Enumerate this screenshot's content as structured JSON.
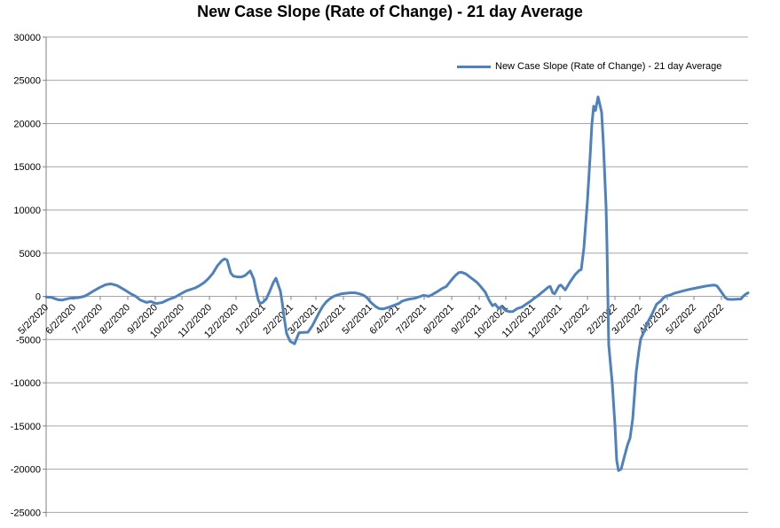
{
  "chart_data": {
    "type": "line",
    "title": "New Case Slope (Rate of Change) - 21 day Average",
    "background": "#FFFFFF",
    "line_color": "#4F81BD",
    "grid_color": "#A6A6A6",
    "axis_color": "#808080",
    "label_color": "#000000",
    "grid": true,
    "legend_position": "top-right-inside",
    "y_axis": {
      "min": -25000,
      "max": 30000,
      "step": 5000,
      "tick_labels": [
        "30000",
        "25000",
        "20000",
        "15000",
        "10000",
        "5000",
        "0",
        "-5000",
        "-10000",
        "-15000",
        "-20000",
        "-25000"
      ]
    },
    "x_axis": {
      "start_date": "5/2/2020",
      "range_days": 791,
      "tick_labels": [
        "5/2/2020",
        "6/2/2020",
        "7/2/2020",
        "8/2/2020",
        "9/2/2020",
        "10/2/2020",
        "11/2/2020",
        "12/2/2020",
        "1/2/2021",
        "2/2/2021",
        "3/2/2021",
        "4/2/2021",
        "5/2/2021",
        "6/2/2021",
        "7/2/2021",
        "8/2/2021",
        "9/2/2021",
        "10/2/2021",
        "11/2/2021",
        "12/2/2021",
        "1/2/2022",
        "2/2/2022",
        "3/2/2022",
        "4/2/2022",
        "5/2/2022",
        "6/2/2022"
      ]
    },
    "series": [
      {
        "name": "New Case Slope (Rate of Change) - 21 day Average",
        "points": [
          [
            0,
            -80
          ],
          [
            6,
            -120
          ],
          [
            13,
            -380
          ],
          [
            18,
            -430
          ],
          [
            26,
            -230
          ],
          [
            36,
            -150
          ],
          [
            43,
            0
          ],
          [
            48,
            280
          ],
          [
            53,
            600
          ],
          [
            60,
            1010
          ],
          [
            67,
            1350
          ],
          [
            73,
            1450
          ],
          [
            80,
            1250
          ],
          [
            88,
            780
          ],
          [
            96,
            260
          ],
          [
            101,
            0
          ],
          [
            106,
            -420
          ],
          [
            113,
            -700
          ],
          [
            118,
            -600
          ],
          [
            124,
            -840
          ],
          [
            131,
            -700
          ],
          [
            138,
            -350
          ],
          [
            145,
            -100
          ],
          [
            151,
            250
          ],
          [
            158,
            640
          ],
          [
            163,
            800
          ],
          [
            168,
            980
          ],
          [
            173,
            1250
          ],
          [
            178,
            1590
          ],
          [
            183,
            2070
          ],
          [
            188,
            2690
          ],
          [
            193,
            3540
          ],
          [
            198,
            4120
          ],
          [
            201,
            4330
          ],
          [
            204,
            4200
          ],
          [
            208,
            2700
          ],
          [
            211,
            2340
          ],
          [
            216,
            2250
          ],
          [
            220,
            2250
          ],
          [
            224,
            2400
          ],
          [
            230,
            2950
          ],
          [
            234,
            2000
          ],
          [
            236,
            980
          ],
          [
            239,
            -400
          ],
          [
            241,
            -840
          ],
          [
            244,
            -700
          ],
          [
            248,
            -300
          ],
          [
            252,
            600
          ],
          [
            256,
            1600
          ],
          [
            259,
            2100
          ],
          [
            261,
            1500
          ],
          [
            264,
            600
          ],
          [
            266,
            -700
          ],
          [
            268,
            -2300
          ],
          [
            271,
            -4300
          ],
          [
            275,
            -5200
          ],
          [
            280,
            -5480
          ],
          [
            283,
            -4700
          ],
          [
            285,
            -4200
          ],
          [
            295,
            -4150
          ],
          [
            300,
            -3400
          ],
          [
            304,
            -2600
          ],
          [
            308,
            -1800
          ],
          [
            312,
            -1100
          ],
          [
            316,
            -600
          ],
          [
            320,
            -250
          ],
          [
            324,
            0
          ],
          [
            328,
            150
          ],
          [
            333,
            300
          ],
          [
            338,
            360
          ],
          [
            343,
            410
          ],
          [
            348,
            410
          ],
          [
            353,
            300
          ],
          [
            358,
            120
          ],
          [
            362,
            -200
          ],
          [
            366,
            -700
          ],
          [
            371,
            -1150
          ],
          [
            375,
            -1400
          ],
          [
            380,
            -1450
          ],
          [
            385,
            -1300
          ],
          [
            389,
            -1150
          ],
          [
            393,
            -1000
          ],
          [
            398,
            -800
          ],
          [
            401,
            -560
          ],
          [
            406,
            -400
          ],
          [
            410,
            -300
          ],
          [
            415,
            -230
          ],
          [
            419,
            -100
          ],
          [
            422,
            0
          ],
          [
            425,
            120
          ],
          [
            428,
            80
          ],
          [
            431,
            0
          ],
          [
            435,
            200
          ],
          [
            441,
            560
          ],
          [
            446,
            900
          ],
          [
            451,
            1150
          ],
          [
            456,
            1800
          ],
          [
            461,
            2400
          ],
          [
            465,
            2750
          ],
          [
            468,
            2790
          ],
          [
            473,
            2600
          ],
          [
            478,
            2200
          ],
          [
            485,
            1660
          ],
          [
            490,
            1100
          ],
          [
            495,
            460
          ],
          [
            497,
            0
          ],
          [
            500,
            -600
          ],
          [
            503,
            -1080
          ],
          [
            506,
            -900
          ],
          [
            510,
            -1410
          ],
          [
            513,
            -1180
          ],
          [
            518,
            -1660
          ],
          [
            522,
            -1760
          ],
          [
            526,
            -1750
          ],
          [
            531,
            -1410
          ],
          [
            536,
            -1250
          ],
          [
            541,
            -900
          ],
          [
            546,
            -560
          ],
          [
            551,
            -150
          ],
          [
            554,
            50
          ],
          [
            558,
            400
          ],
          [
            561,
            640
          ],
          [
            566,
            1080
          ],
          [
            568,
            1150
          ],
          [
            571,
            390
          ],
          [
            573,
            290
          ],
          [
            578,
            1210
          ],
          [
            580,
            1310
          ],
          [
            585,
            740
          ],
          [
            590,
            1600
          ],
          [
            596,
            2510
          ],
          [
            601,
            3020
          ],
          [
            603,
            3100
          ],
          [
            606,
            5590
          ],
          [
            610,
            11050
          ],
          [
            613,
            16180
          ],
          [
            615,
            19900
          ],
          [
            617,
            22000
          ],
          [
            619,
            21500
          ],
          [
            622,
            23080
          ],
          [
            626,
            21300
          ],
          [
            628,
            17550
          ],
          [
            631,
            10370
          ],
          [
            632,
            6000
          ],
          [
            633,
            0
          ],
          [
            634,
            -5600
          ],
          [
            638,
            -10100
          ],
          [
            641,
            -14900
          ],
          [
            643,
            -19000
          ],
          [
            645,
            -20160
          ],
          [
            648,
            -19990
          ],
          [
            651,
            -18800
          ],
          [
            655,
            -17250
          ],
          [
            658,
            -16400
          ],
          [
            661,
            -14200
          ],
          [
            663,
            -11450
          ],
          [
            665,
            -8700
          ],
          [
            668,
            -6300
          ],
          [
            670,
            -4950
          ],
          [
            675,
            -3800
          ],
          [
            678,
            -3000
          ],
          [
            683,
            -2000
          ],
          [
            688,
            -900
          ],
          [
            693,
            -500
          ],
          [
            695,
            -230
          ],
          [
            698,
            0
          ],
          [
            703,
            150
          ],
          [
            708,
            360
          ],
          [
            713,
            500
          ],
          [
            718,
            640
          ],
          [
            723,
            760
          ],
          [
            728,
            870
          ],
          [
            733,
            980
          ],
          [
            738,
            1080
          ],
          [
            743,
            1180
          ],
          [
            748,
            1250
          ],
          [
            753,
            1310
          ],
          [
            756,
            1200
          ],
          [
            760,
            640
          ],
          [
            763,
            200
          ],
          [
            765,
            -120
          ],
          [
            768,
            -330
          ],
          [
            773,
            -350
          ],
          [
            778,
            -330
          ],
          [
            783,
            -300
          ],
          [
            786,
            50
          ],
          [
            789,
            300
          ],
          [
            791,
            400
          ]
        ]
      }
    ]
  }
}
